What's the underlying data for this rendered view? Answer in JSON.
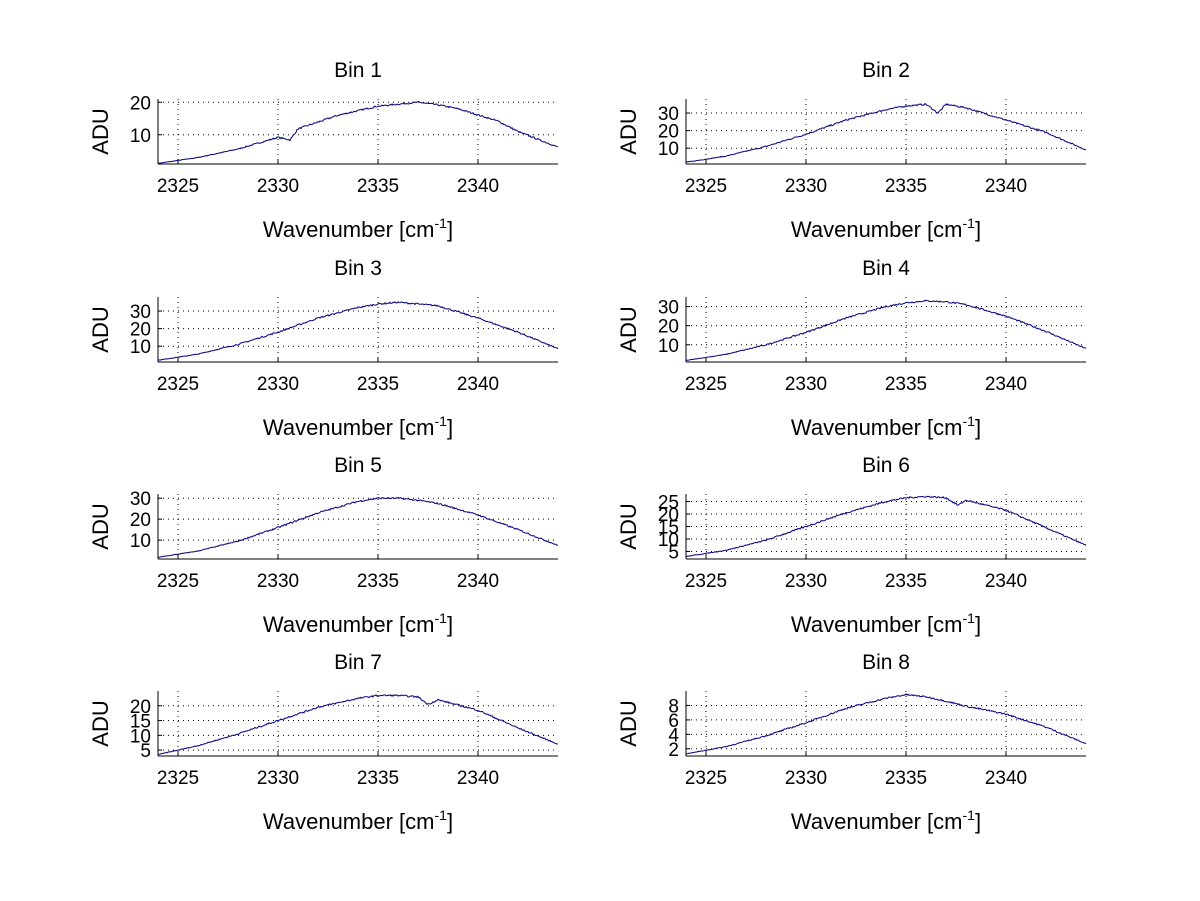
{
  "chart_data": {
    "type": "line",
    "panels": [
      {
        "title": "Bin 1",
        "xlabel": "Wavenumber [cm",
        "xlabel_sup": "-1",
        "xlabel_end": "]",
        "ylabel": "ADU",
        "xlim": [
          2324,
          2344
        ],
        "ylim": [
          1,
          21
        ],
        "xticks": [
          2325,
          2330,
          2335,
          2340
        ],
        "yticks": [
          10,
          20
        ],
        "grid": true,
        "series": [
          {
            "x": [
              2324,
              2326,
              2328,
              2330,
              2330.6,
              2331,
              2333,
              2335,
              2337,
              2338,
              2339,
              2341,
              2342,
              2344
            ],
            "y": [
              1.2,
              3.0,
              5.6,
              9.2,
              8.4,
              11.8,
              16.0,
              18.8,
              20.0,
              19.2,
              18.0,
              14.2,
              11.0,
              6.2
            ]
          }
        ]
      },
      {
        "title": "Bin 2",
        "xlabel": "Wavenumber [cm",
        "xlabel_sup": "-1",
        "xlabel_end": "]",
        "ylabel": "ADU",
        "xlim": [
          2324,
          2344
        ],
        "ylim": [
          1,
          38
        ],
        "xticks": [
          2325,
          2330,
          2335,
          2340
        ],
        "yticks": [
          10,
          20,
          30
        ],
        "grid": true,
        "series": [
          {
            "x": [
              2324,
              2326,
              2328,
              2330,
              2332,
              2334,
              2335,
              2336,
              2336.6,
              2337,
              2338,
              2340,
              2342,
              2344
            ],
            "y": [
              2.0,
              5.5,
              11.0,
              18.0,
              26.0,
              32.0,
              34.0,
              35.0,
              30.0,
              35.0,
              33.0,
              26.0,
              19.0,
              9.0
            ]
          }
        ]
      },
      {
        "title": "Bin 3",
        "xlabel": "Wavenumber [cm",
        "xlabel_sup": "-1",
        "xlabel_end": "]",
        "ylabel": "ADU",
        "xlim": [
          2324,
          2344
        ],
        "ylim": [
          1,
          38
        ],
        "xticks": [
          2325,
          2330,
          2335,
          2340
        ],
        "yticks": [
          10,
          20,
          30
        ],
        "grid": true,
        "series": [
          {
            "x": [
              2324,
              2326,
              2328,
              2330,
              2332,
              2334,
              2335,
              2336,
              2337,
              2338,
              2340,
              2342,
              2344
            ],
            "y": [
              2.0,
              5.5,
              11.0,
              18.0,
              26.0,
              32.0,
              34.0,
              35.0,
              34.0,
              33.0,
              26.0,
              18.0,
              8.5
            ]
          }
        ]
      },
      {
        "title": "Bin 4",
        "xlabel": "Wavenumber [cm",
        "xlabel_sup": "-1",
        "xlabel_end": "]",
        "ylabel": "ADU",
        "xlim": [
          2324,
          2344
        ],
        "ylim": [
          1,
          35
        ],
        "xticks": [
          2325,
          2330,
          2335,
          2340
        ],
        "yticks": [
          10,
          20,
          30
        ],
        "grid": true,
        "series": [
          {
            "x": [
              2324,
              2326,
              2328,
              2330,
              2332,
              2334,
              2335,
              2336,
              2337,
              2338,
              2340,
              2342,
              2344
            ],
            "y": [
              1.8,
              5.0,
              10.0,
              16.5,
              24.0,
              30.0,
              32.0,
              33.0,
              32.5,
              31.0,
              25.0,
              17.0,
              8.0
            ]
          }
        ]
      },
      {
        "title": "Bin 5",
        "xlabel": "Wavenumber [cm",
        "xlabel_sup": "-1",
        "xlabel_end": "]",
        "ylabel": "ADU",
        "xlim": [
          2324,
          2344
        ],
        "ylim": [
          1,
          32
        ],
        "xticks": [
          2325,
          2330,
          2335,
          2340
        ],
        "yticks": [
          10,
          20,
          30
        ],
        "grid": true,
        "series": [
          {
            "x": [
              2324,
              2326,
              2328,
              2330,
              2332,
              2334,
              2335,
              2336,
              2337,
              2338,
              2340,
              2342,
              2344
            ],
            "y": [
              1.8,
              4.8,
              9.5,
              16.0,
              23.0,
              28.5,
              30.0,
              30.0,
              29.0,
              27.5,
              22.0,
              15.0,
              7.5
            ]
          }
        ]
      },
      {
        "title": "Bin 6",
        "xlabel": "Wavenumber [cm",
        "xlabel_sup": "-1",
        "xlabel_end": "]",
        "ylabel": "ADU",
        "xlim": [
          2324,
          2344
        ],
        "ylim": [
          2,
          28
        ],
        "xticks": [
          2325,
          2330,
          2335,
          2340
        ],
        "yticks": [
          5,
          10,
          15,
          20,
          25
        ],
        "grid": true,
        "series": [
          {
            "x": [
              2324,
              2326,
              2328,
              2330,
              2332,
              2334,
              2335,
              2336,
              2337,
              2337.6,
              2338,
              2340,
              2342,
              2344
            ],
            "y": [
              3.0,
              5.5,
              9.5,
              15.0,
              20.5,
              25.0,
              26.5,
              27.0,
              26.5,
              23.5,
              25.5,
              21.5,
              14.5,
              7.5
            ]
          }
        ]
      },
      {
        "title": "Bin 7",
        "xlabel": "Wavenumber [cm",
        "xlabel_sup": "-1",
        "xlabel_end": "]",
        "ylabel": "ADU",
        "xlim": [
          2324,
          2344
        ],
        "ylim": [
          3,
          25
        ],
        "xticks": [
          2325,
          2330,
          2335,
          2340
        ],
        "yticks": [
          5,
          10,
          15,
          20
        ],
        "grid": true,
        "series": [
          {
            "x": [
              2324,
              2326,
              2328,
              2330,
              2332,
              2334,
              2335,
              2336,
              2337,
              2337.5,
              2338,
              2340,
              2342,
              2344
            ],
            "y": [
              3.5,
              6.5,
              10.5,
              15.0,
              19.5,
              22.5,
              23.5,
              23.5,
              23.0,
              20.5,
              22.0,
              18.5,
              12.5,
              7.0
            ]
          }
        ]
      },
      {
        "title": "Bin 8",
        "xlabel": "Wavenumber [cm",
        "xlabel_sup": "-1",
        "xlabel_end": "]",
        "ylabel": "ADU",
        "xlim": [
          2324,
          2344
        ],
        "ylim": [
          1,
          10
        ],
        "xticks": [
          2325,
          2330,
          2335,
          2340
        ],
        "yticks": [
          2,
          4,
          6,
          8
        ],
        "grid": true,
        "series": [
          {
            "x": [
              2324,
              2326,
              2328,
              2330,
              2332,
              2334,
              2335,
              2336,
              2337,
              2338,
              2340,
              2342,
              2344
            ],
            "y": [
              1.3,
              2.3,
              3.8,
              5.6,
              7.6,
              9.0,
              9.5,
              9.2,
              8.6,
              7.9,
              6.8,
              5.0,
              2.7
            ]
          }
        ]
      }
    ],
    "line_color": "#00007f"
  }
}
